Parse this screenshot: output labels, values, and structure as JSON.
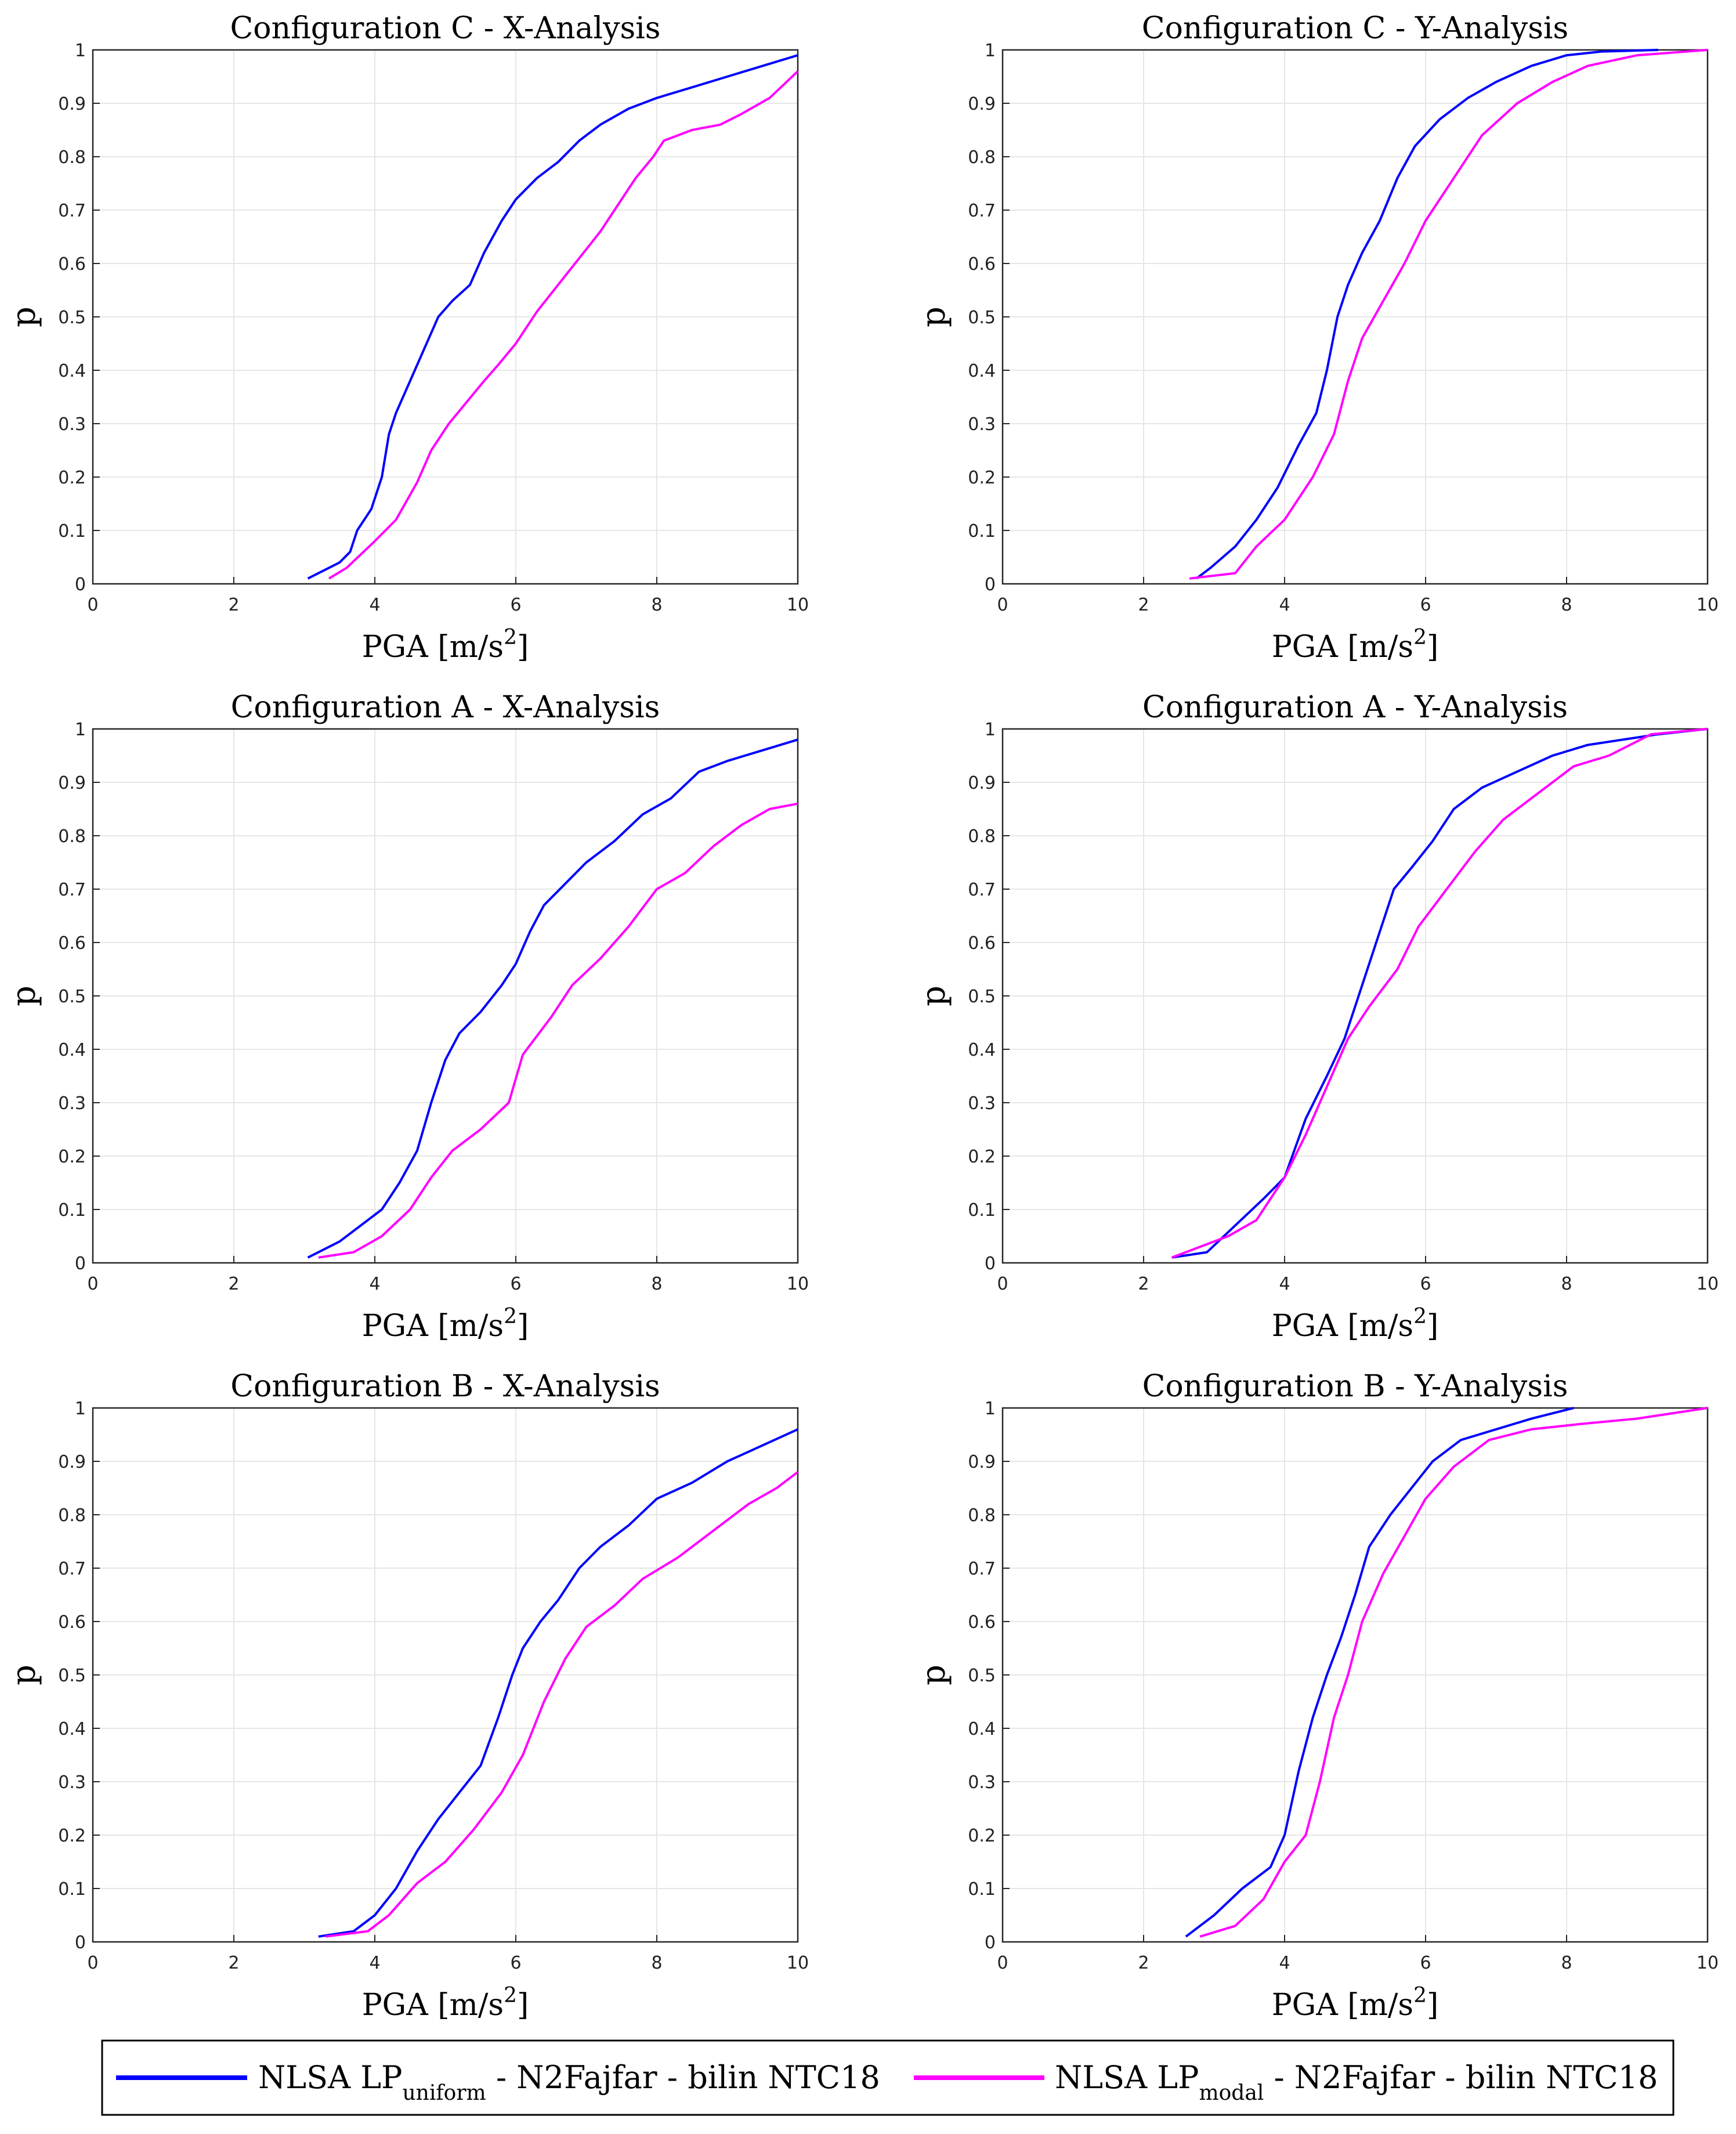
{
  "figure": {
    "legend": {
      "placement": "bottom-center",
      "entries": [
        {
          "base": "NLSA LP",
          "sub": "uniform",
          "suffix": " - N2Fajfar - bilin NTC18",
          "color": "#0000ff"
        },
        {
          "base": "NLSA LP",
          "sub": "modal",
          "suffix": " - N2Fajfar - bilin NTC18",
          "color": "#ff00ff"
        }
      ]
    }
  },
  "chart_data": [
    {
      "type": "line",
      "title": "Configuration C - X-Analysis",
      "xlabel_main": "PGA [m/s",
      "xlabel_sup": "2",
      "xlabel_end": "]",
      "ylabel": "p",
      "xlim": [
        0,
        10
      ],
      "ylim": [
        0,
        1
      ],
      "xticks": [
        "0",
        "2",
        "4",
        "6",
        "8",
        "10"
      ],
      "yticks": [
        "0",
        "0.1",
        "0.2",
        "0.3",
        "0.4",
        "0.5",
        "0.6",
        "0.7",
        "0.8",
        "0.9",
        "1"
      ],
      "grid": true,
      "series": [
        {
          "name": "uniform",
          "color": "#0000ff",
          "x": [
            3.05,
            3.5,
            3.65,
            3.75,
            3.95,
            4.1,
            4.2,
            4.3,
            4.5,
            4.7,
            4.9,
            5.1,
            5.35,
            5.55,
            5.8,
            6.0,
            6.3,
            6.6,
            6.9,
            7.2,
            7.6,
            8.0,
            8.5,
            9.0,
            9.5,
            10.0
          ],
          "y": [
            0.01,
            0.04,
            0.06,
            0.1,
            0.14,
            0.2,
            0.28,
            0.32,
            0.38,
            0.44,
            0.5,
            0.53,
            0.56,
            0.62,
            0.68,
            0.72,
            0.76,
            0.79,
            0.83,
            0.86,
            0.89,
            0.91,
            0.93,
            0.95,
            0.97,
            0.99
          ]
        },
        {
          "name": "modal",
          "color": "#ff00ff",
          "x": [
            3.35,
            3.6,
            4.0,
            4.3,
            4.6,
            4.8,
            5.05,
            5.3,
            5.55,
            5.75,
            6.0,
            6.3,
            6.6,
            6.9,
            7.2,
            7.4,
            7.7,
            7.95,
            8.1,
            8.5,
            8.9,
            9.2,
            9.6,
            10.0
          ],
          "y": [
            0.01,
            0.03,
            0.08,
            0.12,
            0.19,
            0.25,
            0.3,
            0.34,
            0.38,
            0.41,
            0.45,
            0.51,
            0.56,
            0.61,
            0.66,
            0.7,
            0.76,
            0.8,
            0.83,
            0.85,
            0.86,
            0.88,
            0.91,
            0.96
          ]
        }
      ]
    },
    {
      "type": "line",
      "title": "Configuration C - Y-Analysis",
      "xlabel_main": "PGA [m/s",
      "xlabel_sup": "2",
      "xlabel_end": "]",
      "ylabel": "p",
      "xlim": [
        0,
        10
      ],
      "ylim": [
        0,
        1
      ],
      "xticks": [
        "0",
        "2",
        "4",
        "6",
        "8",
        "10"
      ],
      "yticks": [
        "0",
        "0.1",
        "0.2",
        "0.3",
        "0.4",
        "0.5",
        "0.6",
        "0.7",
        "0.8",
        "0.9",
        "1"
      ],
      "grid": true,
      "series": [
        {
          "name": "uniform",
          "color": "#0000ff",
          "x": [
            2.75,
            2.95,
            3.3,
            3.6,
            3.9,
            4.2,
            4.45,
            4.6,
            4.75,
            4.9,
            5.1,
            5.35,
            5.6,
            5.85,
            6.2,
            6.6,
            7.0,
            7.5,
            8.0,
            8.5,
            9.3
          ],
          "y": [
            0.01,
            0.03,
            0.07,
            0.12,
            0.18,
            0.26,
            0.32,
            0.4,
            0.5,
            0.56,
            0.62,
            0.68,
            0.76,
            0.82,
            0.87,
            0.91,
            0.94,
            0.97,
            0.99,
            0.997,
            1.0
          ]
        },
        {
          "name": "modal",
          "color": "#ff00ff",
          "x": [
            2.65,
            3.3,
            3.6,
            4.0,
            4.4,
            4.7,
            4.9,
            5.1,
            5.4,
            5.7,
            6.0,
            6.4,
            6.8,
            7.3,
            7.8,
            8.3,
            9.0,
            10.0
          ],
          "y": [
            0.01,
            0.02,
            0.07,
            0.12,
            0.2,
            0.28,
            0.38,
            0.46,
            0.53,
            0.6,
            0.68,
            0.76,
            0.84,
            0.9,
            0.94,
            0.97,
            0.99,
            1.0
          ]
        }
      ]
    },
    {
      "type": "line",
      "title": "Configuration A - X-Analysis",
      "xlabel_main": "PGA [m/s",
      "xlabel_sup": "2",
      "xlabel_end": "]",
      "ylabel": "p",
      "xlim": [
        0,
        10
      ],
      "ylim": [
        0,
        1
      ],
      "xticks": [
        "0",
        "2",
        "4",
        "6",
        "8",
        "10"
      ],
      "yticks": [
        "0",
        "0.1",
        "0.2",
        "0.3",
        "0.4",
        "0.5",
        "0.6",
        "0.7",
        "0.8",
        "0.9",
        "1"
      ],
      "grid": true,
      "series": [
        {
          "name": "uniform",
          "color": "#0000ff",
          "x": [
            3.05,
            3.5,
            3.8,
            4.1,
            4.35,
            4.6,
            4.8,
            5.0,
            5.2,
            5.5,
            5.8,
            6.0,
            6.2,
            6.4,
            6.7,
            7.0,
            7.4,
            7.8,
            8.2,
            8.6,
            9.0,
            9.5,
            10.0
          ],
          "y": [
            0.01,
            0.04,
            0.07,
            0.1,
            0.15,
            0.21,
            0.3,
            0.38,
            0.43,
            0.47,
            0.52,
            0.56,
            0.62,
            0.67,
            0.71,
            0.75,
            0.79,
            0.84,
            0.87,
            0.92,
            0.94,
            0.96,
            0.98
          ]
        },
        {
          "name": "modal",
          "color": "#ff00ff",
          "x": [
            3.2,
            3.7,
            4.1,
            4.5,
            4.8,
            5.1,
            5.5,
            5.9,
            6.1,
            6.5,
            6.8,
            7.2,
            7.6,
            8.0,
            8.4,
            8.8,
            9.2,
            9.6,
            10.0
          ],
          "y": [
            0.01,
            0.02,
            0.05,
            0.1,
            0.16,
            0.21,
            0.25,
            0.3,
            0.39,
            0.46,
            0.52,
            0.57,
            0.63,
            0.7,
            0.73,
            0.78,
            0.82,
            0.85,
            0.86
          ]
        }
      ]
    },
    {
      "type": "line",
      "title": "Configuration A - Y-Analysis",
      "xlabel_main": "PGA [m/s",
      "xlabel_sup": "2",
      "xlabel_end": "]",
      "ylabel": "p",
      "xlim": [
        0,
        10
      ],
      "ylim": [
        0,
        1
      ],
      "xticks": [
        "0",
        "2",
        "4",
        "6",
        "8",
        "10"
      ],
      "yticks": [
        "0",
        "0.1",
        "0.2",
        "0.3",
        "0.4",
        "0.5",
        "0.6",
        "0.7",
        "0.8",
        "0.9",
        "1"
      ],
      "grid": true,
      "series": [
        {
          "name": "uniform",
          "color": "#0000ff",
          "x": [
            2.4,
            2.9,
            3.3,
            3.7,
            4.0,
            4.3,
            4.6,
            4.85,
            5.05,
            5.3,
            5.55,
            5.8,
            6.1,
            6.4,
            6.8,
            7.3,
            7.8,
            8.3,
            8.8,
            9.3,
            10.0
          ],
          "y": [
            0.01,
            0.02,
            0.07,
            0.12,
            0.16,
            0.27,
            0.35,
            0.42,
            0.5,
            0.6,
            0.7,
            0.74,
            0.79,
            0.85,
            0.89,
            0.92,
            0.95,
            0.97,
            0.98,
            0.99,
            1.0
          ]
        },
        {
          "name": "modal",
          "color": "#ff00ff",
          "x": [
            2.4,
            2.8,
            3.2,
            3.6,
            4.0,
            4.3,
            4.6,
            4.9,
            5.2,
            5.6,
            5.9,
            6.3,
            6.7,
            7.1,
            7.6,
            8.1,
            8.6,
            9.2,
            10.0
          ],
          "y": [
            0.01,
            0.03,
            0.05,
            0.08,
            0.16,
            0.24,
            0.33,
            0.42,
            0.48,
            0.55,
            0.63,
            0.7,
            0.77,
            0.83,
            0.88,
            0.93,
            0.95,
            0.99,
            1.0
          ]
        }
      ]
    },
    {
      "type": "line",
      "title": "Configuration B - X-Analysis",
      "xlabel_main": "PGA [m/s",
      "xlabel_sup": "2",
      "xlabel_end": "]",
      "ylabel": "p",
      "xlim": [
        0,
        10
      ],
      "ylim": [
        0,
        1
      ],
      "xticks": [
        "0",
        "2",
        "4",
        "6",
        "8",
        "10"
      ],
      "yticks": [
        "0",
        "0.1",
        "0.2",
        "0.3",
        "0.4",
        "0.5",
        "0.6",
        "0.7",
        "0.8",
        "0.9",
        "1"
      ],
      "grid": true,
      "series": [
        {
          "name": "uniform",
          "color": "#0000ff",
          "x": [
            3.2,
            3.7,
            4.0,
            4.3,
            4.6,
            4.9,
            5.2,
            5.5,
            5.75,
            5.95,
            6.1,
            6.35,
            6.6,
            6.9,
            7.2,
            7.6,
            8.0,
            8.5,
            9.0,
            9.5,
            10.0
          ],
          "y": [
            0.01,
            0.02,
            0.05,
            0.1,
            0.17,
            0.23,
            0.28,
            0.33,
            0.42,
            0.5,
            0.55,
            0.6,
            0.64,
            0.7,
            0.74,
            0.78,
            0.83,
            0.86,
            0.9,
            0.93,
            0.96
          ]
        },
        {
          "name": "modal",
          "color": "#ff00ff",
          "x": [
            3.3,
            3.9,
            4.2,
            4.6,
            5.0,
            5.4,
            5.8,
            6.1,
            6.4,
            6.7,
            7.0,
            7.4,
            7.8,
            8.3,
            8.8,
            9.3,
            9.7,
            10.0
          ],
          "y": [
            0.01,
            0.02,
            0.05,
            0.11,
            0.15,
            0.21,
            0.28,
            0.35,
            0.45,
            0.53,
            0.59,
            0.63,
            0.68,
            0.72,
            0.77,
            0.82,
            0.85,
            0.88
          ]
        }
      ]
    },
    {
      "type": "line",
      "title": "Configuration B - Y-Analysis",
      "xlabel_main": "PGA [m/s",
      "xlabel_sup": "2",
      "xlabel_end": "]",
      "ylabel": "p",
      "xlim": [
        0,
        10
      ],
      "ylim": [
        0,
        1
      ],
      "xticks": [
        "0",
        "2",
        "4",
        "6",
        "8",
        "10"
      ],
      "yticks": [
        "0",
        "0.1",
        "0.2",
        "0.3",
        "0.4",
        "0.5",
        "0.6",
        "0.7",
        "0.8",
        "0.9",
        "1"
      ],
      "grid": true,
      "series": [
        {
          "name": "uniform",
          "color": "#0000ff",
          "x": [
            2.6,
            3.0,
            3.4,
            3.8,
            4.0,
            4.2,
            4.4,
            4.6,
            4.8,
            5.0,
            5.2,
            5.5,
            5.8,
            6.1,
            6.5,
            7.0,
            7.5,
            8.1
          ],
          "y": [
            0.01,
            0.05,
            0.1,
            0.14,
            0.2,
            0.32,
            0.42,
            0.5,
            0.57,
            0.65,
            0.74,
            0.8,
            0.85,
            0.9,
            0.94,
            0.96,
            0.98,
            1.0
          ]
        },
        {
          "name": "modal",
          "color": "#ff00ff",
          "x": [
            2.8,
            3.3,
            3.7,
            4.0,
            4.3,
            4.5,
            4.7,
            4.9,
            5.1,
            5.4,
            5.7,
            6.0,
            6.4,
            6.9,
            7.5,
            8.2,
            9.0,
            10.0
          ],
          "y": [
            0.01,
            0.03,
            0.08,
            0.15,
            0.2,
            0.3,
            0.42,
            0.5,
            0.6,
            0.69,
            0.76,
            0.83,
            0.89,
            0.94,
            0.96,
            0.97,
            0.98,
            1.0
          ]
        }
      ]
    }
  ]
}
